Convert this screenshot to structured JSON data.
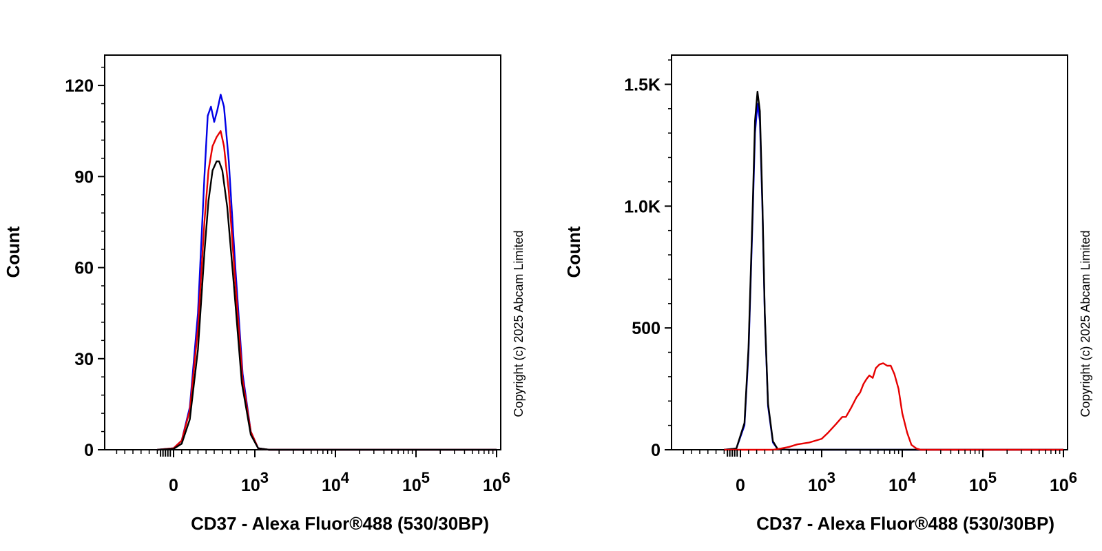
{
  "chart_data": [
    {
      "type": "line",
      "panel": "left",
      "xlabel": "CD37 - Alexa Fluor®488 (530/30BP)",
      "ylabel": "Count",
      "x_scale": "biexponential",
      "xlim": [
        -800,
        1000000
      ],
      "ylim": [
        0,
        130
      ],
      "x_ticks": [
        {
          "value": 0,
          "base": "0",
          "exp": ""
        },
        {
          "value": 1000,
          "base": "10",
          "exp": "3"
        },
        {
          "value": 10000,
          "base": "10",
          "exp": "4"
        },
        {
          "value": 100000,
          "base": "10",
          "exp": "5"
        },
        {
          "value": 1000000,
          "base": "10",
          "exp": "6"
        }
      ],
      "y_ticks": [
        {
          "value": 0,
          "label": "0"
        },
        {
          "value": 30,
          "label": "30"
        },
        {
          "value": 60,
          "label": "60"
        },
        {
          "value": 90,
          "label": "90"
        },
        {
          "value": 120,
          "label": "120"
        }
      ],
      "copyright": "Copyright (c) 2025 Abcam Limited",
      "series": [
        {
          "color": "#0000e6",
          "x": [
            -200,
            0,
            100,
            200,
            300,
            380,
            420,
            460,
            500,
            540,
            580,
            620,
            680,
            760,
            850,
            950,
            1100,
            1500,
            3000,
            1000000
          ],
          "y": [
            0,
            0.5,
            3,
            14,
            45,
            90,
            110,
            113,
            108,
            112,
            117,
            113,
            95,
            60,
            25,
            6,
            0.5,
            0,
            0,
            0
          ]
        },
        {
          "color": "#e60000",
          "x": [
            -200,
            0,
            100,
            200,
            300,
            380,
            430,
            480,
            530,
            580,
            620,
            680,
            760,
            850,
            950,
            1100,
            1500,
            3000,
            1000000
          ],
          "y": [
            0,
            0.5,
            3,
            13,
            40,
            75,
            92,
            100,
            103,
            105,
            100,
            85,
            55,
            23,
            6,
            0.5,
            0,
            0,
            0
          ]
        },
        {
          "color": "#000000",
          "x": [
            -200,
            0,
            100,
            200,
            300,
            380,
            430,
            480,
            530,
            560,
            600,
            660,
            740,
            840,
            950,
            1100,
            1500,
            3000,
            1000000
          ],
          "y": [
            0,
            0.3,
            2,
            10,
            33,
            65,
            82,
            92,
            95,
            95,
            92,
            80,
            55,
            22,
            5,
            0.5,
            0,
            0,
            0
          ]
        }
      ]
    },
    {
      "type": "line",
      "panel": "right",
      "xlabel": "CD37 - Alexa Fluor®488 (530/30BP)",
      "ylabel": "Count",
      "x_scale": "biexponential",
      "xlim": [
        -800,
        1000000
      ],
      "ylim": [
        0,
        1620
      ],
      "x_ticks": [
        {
          "value": 0,
          "base": "0",
          "exp": ""
        },
        {
          "value": 1000,
          "base": "10",
          "exp": "3"
        },
        {
          "value": 10000,
          "base": "10",
          "exp": "4"
        },
        {
          "value": 100000,
          "base": "10",
          "exp": "5"
        },
        {
          "value": 1000000,
          "base": "10",
          "exp": "6"
        }
      ],
      "y_ticks": [
        {
          "value": 0,
          "label": "0"
        },
        {
          "value": 500,
          "label": "500"
        },
        {
          "value": 1000,
          "label": "1.0K"
        },
        {
          "value": 1500,
          "label": "1.5K"
        }
      ],
      "copyright": "Copyright (c) 2025 Abcam Limited",
      "series": [
        {
          "color": "#0000e6",
          "x": [
            -200,
            -50,
            50,
            100,
            150,
            180,
            210,
            240,
            270,
            300,
            340,
            400,
            460,
            600,
            1000000
          ],
          "y": [
            0,
            5,
            100,
            400,
            950,
            1300,
            1420,
            1350,
            1000,
            550,
            180,
            30,
            2,
            0,
            0
          ]
        },
        {
          "color": "#000000",
          "x": [
            -200,
            -50,
            50,
            100,
            150,
            180,
            210,
            240,
            270,
            300,
            340,
            400,
            460,
            600,
            1000000
          ],
          "y": [
            0,
            5,
            110,
            420,
            980,
            1350,
            1470,
            1390,
            1020,
            560,
            190,
            35,
            2,
            0,
            0
          ]
        },
        {
          "color": "#e60000",
          "x": [
            -200,
            100,
            400,
            500,
            600,
            700,
            850,
            1000,
            1200,
            1500,
            1800,
            2000,
            2300,
            2700,
            3000,
            3300,
            3600,
            3900,
            4300,
            4700,
            5200,
            5800,
            6500,
            7200,
            8000,
            9000,
            10000,
            11500,
            13000,
            15000,
            17000,
            20000,
            1000000
          ],
          "y": [
            0,
            0,
            0,
            5,
            12,
            22,
            30,
            45,
            70,
            105,
            135,
            135,
            170,
            215,
            235,
            270,
            290,
            305,
            295,
            335,
            350,
            355,
            345,
            345,
            310,
            250,
            150,
            70,
            20,
            5,
            0,
            0,
            0
          ]
        }
      ]
    }
  ]
}
